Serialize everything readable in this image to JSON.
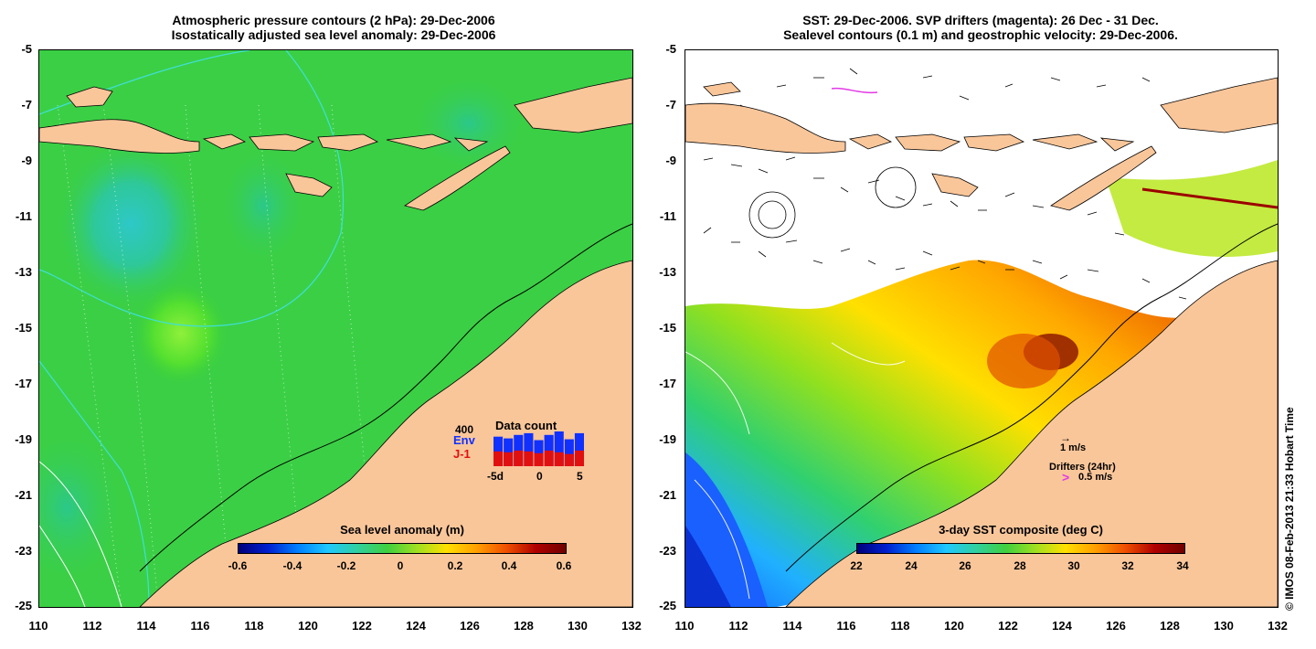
{
  "left_panel": {
    "title_line1": "Atmospheric pressure contours (2 hPa): 29-Dec-2006",
    "title_line2": "Isostatically adjusted sea level anomaly: 29-Dec-2006",
    "y_ticks": [
      "-5",
      "-7",
      "-9",
      "-11",
      "-13",
      "-15",
      "-17",
      "-19",
      "-21",
      "-23",
      "-25"
    ],
    "x_ticks": [
      "110",
      "112",
      "114",
      "116",
      "118",
      "120",
      "122",
      "124",
      "126",
      "128",
      "130",
      "132"
    ],
    "colorbar": {
      "title": "Sea level anomaly (m)",
      "labels": [
        "-0.6",
        "-0.4",
        "-0.2",
        "0",
        "0.2",
        "0.4",
        "0.6"
      ]
    },
    "data_count": {
      "title": "Data count",
      "max_label": "400",
      "series1": "Env",
      "series2": "J-1",
      "x_labels": [
        "-5d",
        "0",
        "5"
      ],
      "env_values": [
        340,
        320,
        360,
        380,
        300,
        360,
        400,
        310,
        380
      ],
      "j1_values": [
        170,
        160,
        180,
        170,
        150,
        180,
        160,
        140,
        180
      ]
    }
  },
  "right_panel": {
    "title_line1": "SST: 29-Dec-2006. SVP drifters (magenta): 26 Dec - 31 Dec.",
    "title_line2": "Sealevel contours (0.1 m) and geostrophic velocity: 29-Dec-2006.",
    "y_ticks": [
      "-5",
      "-7",
      "-9",
      "-11",
      "-13",
      "-15",
      "-17",
      "-19",
      "-21",
      "-23",
      "-25"
    ],
    "x_ticks": [
      "110",
      "112",
      "114",
      "116",
      "118",
      "120",
      "122",
      "124",
      "126",
      "128",
      "130",
      "132"
    ],
    "colorbar": {
      "title": "3-day SST composite (deg C)",
      "labels": [
        "22",
        "24",
        "26",
        "28",
        "30",
        "32",
        "34"
      ]
    },
    "legend": {
      "velocity_label": "1 m/s",
      "drifters_label": "Drifters (24hr)",
      "drifter_speed_symbol": ">",
      "drifter_speed_label": "0.5 m/s"
    }
  },
  "credit": "© IMOS 08-Feb-2013 21:33 Hobart Time",
  "colors": {
    "land": "#f9c69a",
    "ocean_green": "#39d23b",
    "contour_cyan": "#3fe0d8",
    "drifter_magenta": "#e23ae6",
    "drifter_red": "#9b0000",
    "env_bar": "#1030ff",
    "j1_bar": "#e01010"
  }
}
